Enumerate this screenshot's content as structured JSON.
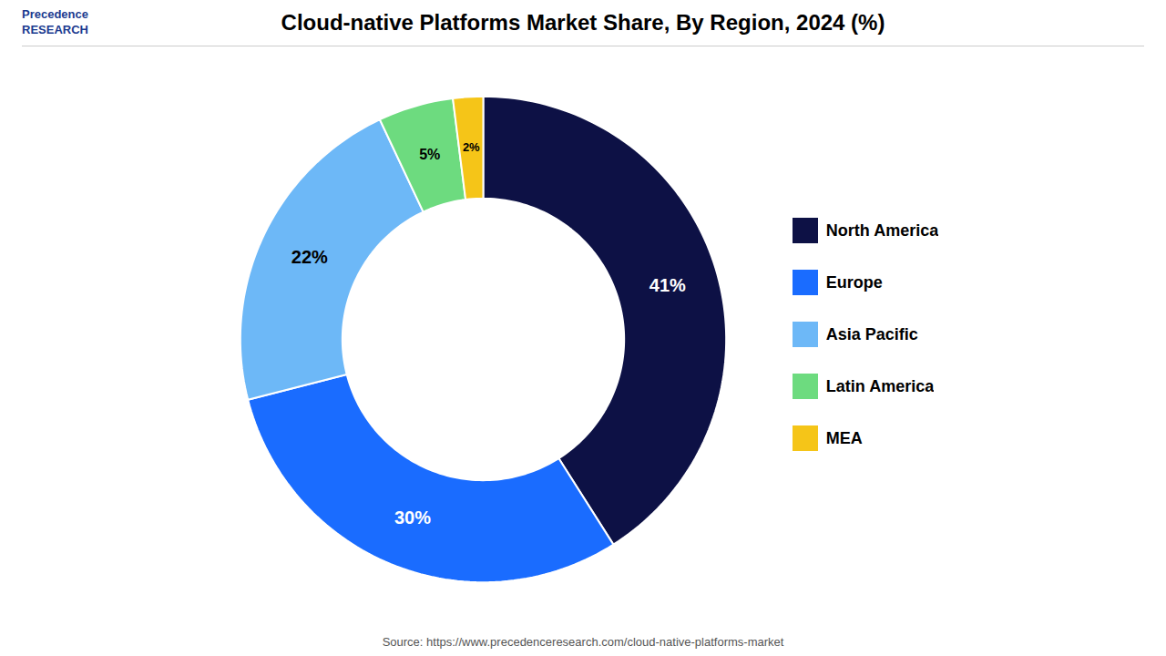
{
  "chart_data": {
    "type": "donut",
    "title": "Cloud-native Platforms Market Share, By Region, 2024 (%)",
    "categories": [
      "North America",
      "Europe",
      "Asia Pacific",
      "Latin America",
      "MEA"
    ],
    "values": [
      41,
      30,
      22,
      5,
      2
    ],
    "value_labels": [
      "41%",
      "30%",
      "22%",
      "5%",
      "2%"
    ],
    "colors": [
      "#0d1145",
      "#1a6cff",
      "#6db8f7",
      "#6ddb7f",
      "#f5c518"
    ],
    "data_labels": true,
    "legend": "right",
    "caption": "Source: https://www.precedenceresearch.com/cloud-native-platforms-market",
    "annotations": [
      "Precedence\nRESEARCH"
    ]
  }
}
